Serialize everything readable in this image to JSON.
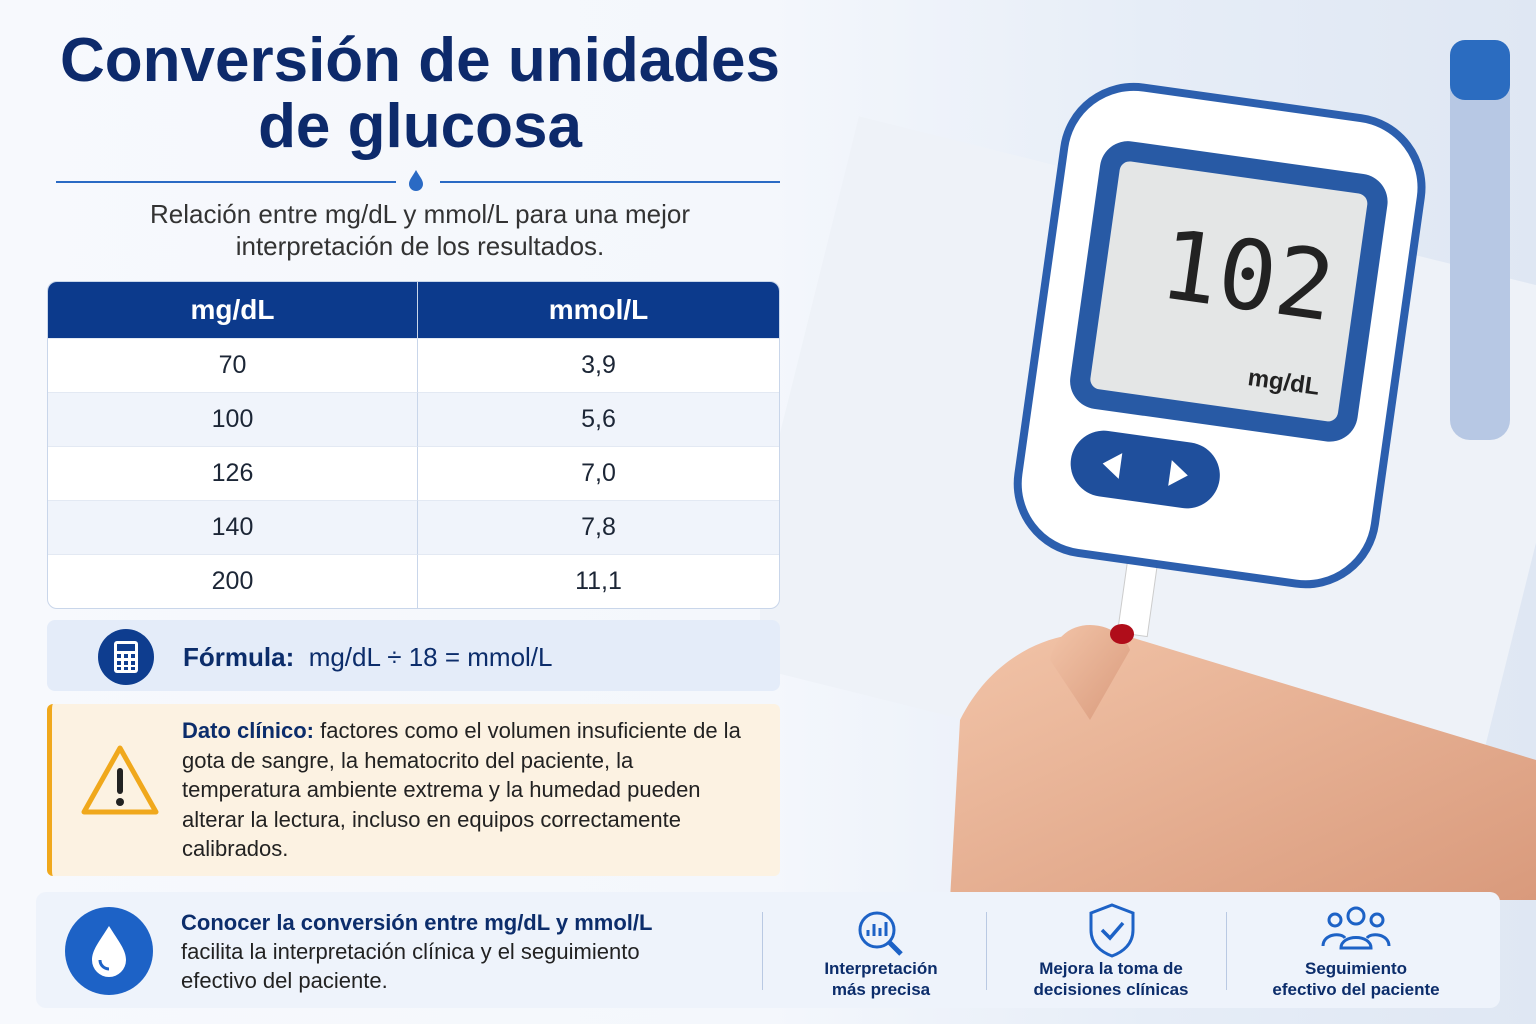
{
  "header": {
    "title": "Conversión de unidades de glucosa",
    "subtitle": "Relación entre mg/dL y mmol/L para una mejor interpretación de los resultados."
  },
  "table": {
    "columns": [
      "mg/dL",
      "mmol/L"
    ],
    "rows": [
      [
        "70",
        "3,9"
      ],
      [
        "100",
        "5,6"
      ],
      [
        "126",
        "7,0"
      ],
      [
        "140",
        "7,8"
      ],
      [
        "200",
        "11,1"
      ]
    ]
  },
  "formula": {
    "label": "Fórmula:",
    "text": "mg/dL ÷ 18 = mmol/L"
  },
  "note": {
    "label": "Dato clínico:",
    "text": "factores como el volumen insuficiente de la gota de sangre, la hematocrito del paciente, la temperatura ambiente extrema y la humedad pueden alterar la lectura, incluso en equipos correctamente calibrados."
  },
  "meter": {
    "reading": "102",
    "unit": "mg/dL"
  },
  "footer": {
    "bold": "Conocer la conversión entre mg/dL y mmol/L",
    "text": "facilita la interpretación clínica y el seguimiento efectivo del paciente.",
    "features": [
      "Interpretación más precisa",
      "Mejora la toma de decisiones clínicas",
      "Seguimiento efectivo del paciente"
    ]
  }
}
